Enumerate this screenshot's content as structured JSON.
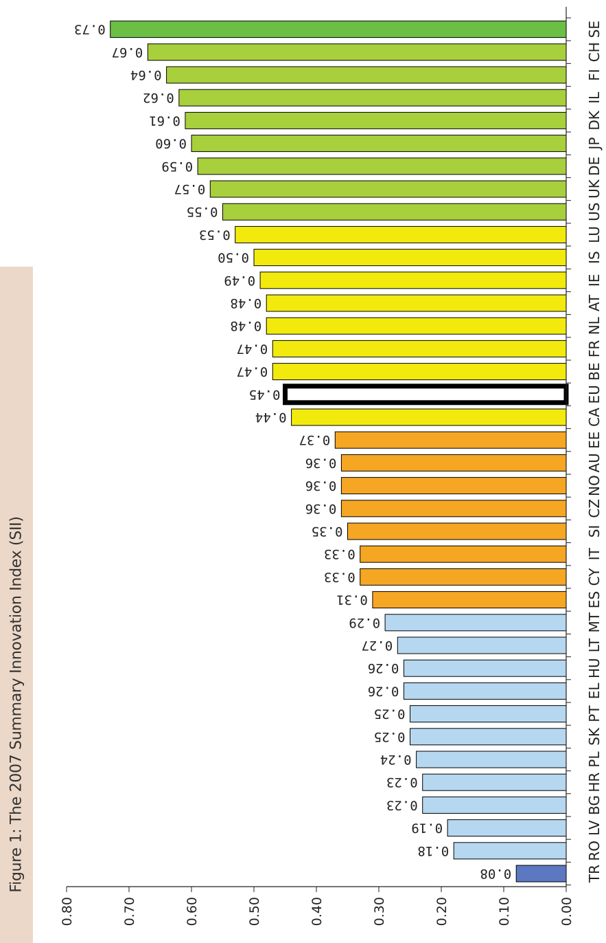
{
  "figure": {
    "title": "Figure 1: The 2007 Summary Innovation Index (SII)"
  },
  "chart_data": {
    "type": "bar",
    "orientation": "horizontal",
    "title": "Figure 1: The 2007 Summary Innovation Index (SII)",
    "xlabel": "",
    "ylabel": "",
    "xlim": [
      0,
      0.8
    ],
    "ticks": [
      "0.00",
      "0.10",
      "0.20",
      "0.30",
      "0.40",
      "0.50",
      "0.60",
      "0.70",
      "0.80"
    ],
    "ticks_values": [
      0,
      0.1,
      0.2,
      0.3,
      0.4,
      0.5,
      0.6,
      0.7,
      0.8
    ],
    "categories": [
      "TR",
      "RO",
      "LV",
      "BG",
      "HR",
      "PL",
      "SK",
      "PT",
      "EL",
      "HU",
      "LT",
      "MT",
      "ES",
      "CY",
      "IT",
      "SI",
      "CZ",
      "NO",
      "AU",
      "EE",
      "CA",
      "EU",
      "BE",
      "FR",
      "NL",
      "AT",
      "IE",
      "IS",
      "LU",
      "US",
      "UK",
      "DE",
      "JP",
      "DK",
      "IL",
      "FI",
      "CH",
      "SE"
    ],
    "values": [
      0.08,
      0.18,
      0.19,
      0.23,
      0.23,
      0.24,
      0.25,
      0.25,
      0.26,
      0.26,
      0.27,
      0.29,
      0.31,
      0.33,
      0.33,
      0.35,
      0.36,
      0.36,
      0.36,
      0.37,
      0.44,
      0.45,
      0.47,
      0.47,
      0.48,
      0.48,
      0.49,
      0.5,
      0.53,
      0.55,
      0.57,
      0.59,
      0.6,
      0.61,
      0.62,
      0.64,
      0.67,
      0.73
    ],
    "value_labels": [
      "0.08",
      "0.18",
      "0.19",
      "0.23",
      "0.23",
      "0.24",
      "0.25",
      "0.25",
      "0.26",
      "0.26",
      "0.27",
      "0.29",
      "0.31",
      "0.33",
      "0.33",
      "0.35",
      "0.36",
      "0.36",
      "0.36",
      "0.37",
      "0.44",
      "0.45",
      "0.47",
      "0.47",
      "0.48",
      "0.48",
      "0.49",
      "0.50",
      "0.53",
      "0.55",
      "0.57",
      "0.59",
      "0.60",
      "0.61",
      "0.62",
      "0.64",
      "0.67",
      "0.73"
    ],
    "groups": [
      "dark-blue",
      "light-blue",
      "light-blue",
      "light-blue",
      "light-blue",
      "light-blue",
      "light-blue",
      "light-blue",
      "light-blue",
      "light-blue",
      "light-blue",
      "light-blue",
      "orange",
      "orange",
      "orange",
      "orange",
      "orange",
      "orange",
      "orange",
      "orange",
      "yellow",
      "highlight",
      "yellow",
      "yellow",
      "yellow",
      "yellow",
      "yellow",
      "yellow",
      "yellow",
      "green",
      "green",
      "green",
      "green",
      "green",
      "green",
      "green",
      "green",
      "bright-green"
    ],
    "colors": {
      "dark-blue": "#5b78c0",
      "light-blue": "#b6d7f0",
      "orange": "#f5a623",
      "yellow": "#f2ea0d",
      "highlight": "#ffffff",
      "green": "#a8cf3c",
      "bright-green": "#6cbf45"
    },
    "grid": false,
    "legend": "none"
  }
}
